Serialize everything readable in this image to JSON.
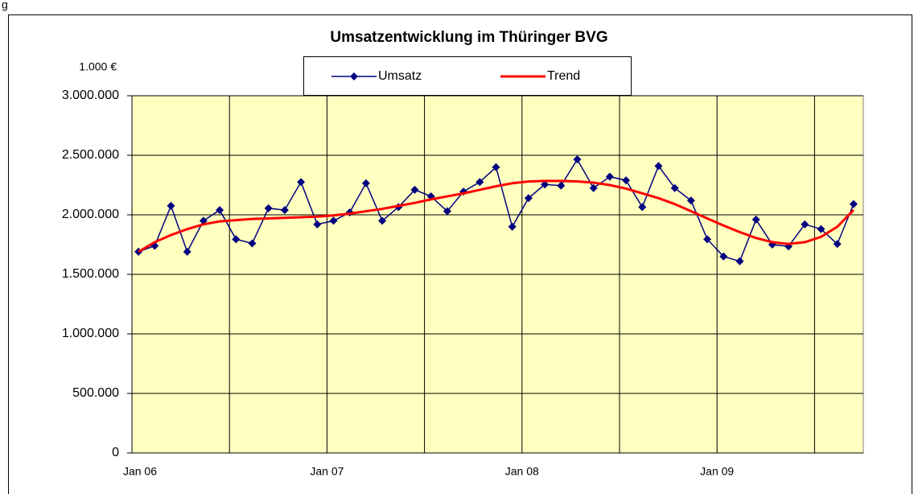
{
  "caption": "g",
  "chart_data": {
    "type": "line",
    "title": "Umsatzentwicklung im Thüringer BVG",
    "y_unit_label": "1.000 €",
    "categories": [
      "Jan 06",
      null,
      null,
      null,
      null,
      null,
      null,
      null,
      null,
      null,
      null,
      null,
      "Jan 07",
      null,
      null,
      null,
      null,
      null,
      null,
      null,
      null,
      null,
      null,
      null,
      "Jan 08",
      null,
      null,
      null,
      null,
      null,
      null,
      null,
      null,
      null,
      null,
      null,
      "Jan 09",
      null,
      null,
      null,
      null,
      null,
      null,
      null,
      null
    ],
    "series": [
      {
        "name": "Umsatz",
        "color": "#000080",
        "marker": "diamond",
        "values": [
          1690000,
          1740000,
          2075000,
          1690000,
          1950000,
          2040000,
          1795000,
          1760000,
          2055000,
          2040000,
          2275000,
          1920000,
          1950000,
          2020000,
          2265000,
          1950000,
          2065000,
          2210000,
          2155000,
          2030000,
          2195000,
          2275000,
          2400000,
          1900000,
          2140000,
          2255000,
          2245000,
          2465000,
          2225000,
          2320000,
          2290000,
          2065000,
          2410000,
          2225000,
          2120000,
          1795000,
          1650000,
          1610000,
          1960000,
          1750000,
          1735000,
          1920000,
          1880000,
          1755000,
          2090000
        ]
      },
      {
        "name": "Trend",
        "color": "#ff0000",
        "values": [
          1690000,
          1770000,
          1830000,
          1880000,
          1920000,
          1945000,
          1955000,
          1965000,
          1970000,
          1975000,
          1980000,
          1985000,
          1995000,
          2010000,
          2030000,
          2050000,
          2075000,
          2100000,
          2130000,
          2155000,
          2180000,
          2210000,
          2240000,
          2265000,
          2280000,
          2285000,
          2285000,
          2280000,
          2270000,
          2250000,
          2220000,
          2180000,
          2140000,
          2090000,
          2030000,
          1970000,
          1910000,
          1855000,
          1805000,
          1770000,
          1755000,
          1770000,
          1815000,
          1900000,
          2040000
        ]
      }
    ],
    "ylim": [
      0,
      3000000
    ],
    "yticks": [
      0,
      {
        "value": 500000,
        "label": "500.000"
      },
      {
        "value": 1000000,
        "label": "1.000.000"
      },
      {
        "value": 1500000,
        "label": "1.500.000"
      },
      {
        "value": 2000000,
        "label": "2.000.000"
      },
      {
        "value": 2500000,
        "label": "2.500.000"
      },
      {
        "value": 3000000,
        "label": "3.000.000"
      }
    ],
    "grid": true,
    "plot_background": "#ffffc0",
    "legend": "top"
  }
}
